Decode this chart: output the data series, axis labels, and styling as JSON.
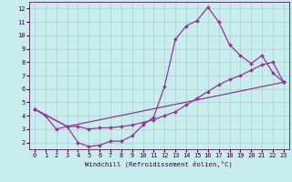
{
  "bg_color": "#c8eded",
  "grid_color": "#aacccc",
  "line_color": "#993399",
  "spine_color": "#663366",
  "tick_color": "#330033",
  "xlabel": "Windchill (Refroidissement éolien,°C)",
  "xlim": [
    -0.5,
    23.5
  ],
  "ylim": [
    1.5,
    12.5
  ],
  "xticks": [
    0,
    1,
    2,
    3,
    4,
    5,
    6,
    7,
    8,
    9,
    10,
    11,
    12,
    13,
    14,
    15,
    16,
    17,
    18,
    19,
    20,
    21,
    22,
    23
  ],
  "yticks": [
    2,
    3,
    4,
    5,
    6,
    7,
    8,
    9,
    10,
    11,
    12
  ],
  "curve1_x": [
    0,
    1,
    2,
    3,
    4,
    5,
    6,
    7,
    8,
    9,
    10,
    11,
    12,
    13,
    14,
    15,
    16,
    17,
    18,
    19,
    20,
    21,
    22,
    23
  ],
  "curve1_y": [
    4.5,
    4.0,
    3.0,
    3.2,
    2.0,
    1.7,
    1.8,
    2.1,
    2.1,
    2.5,
    3.3,
    3.9,
    6.2,
    9.7,
    10.7,
    11.1,
    12.1,
    11.0,
    9.3,
    8.5,
    7.9,
    8.5,
    7.2,
    6.5
  ],
  "curve2_x": [
    0,
    3,
    4,
    5,
    6,
    7,
    8,
    9,
    10,
    11,
    12,
    13,
    14,
    15,
    16,
    17,
    18,
    19,
    20,
    21,
    22,
    23
  ],
  "curve2_y": [
    4.5,
    3.2,
    3.2,
    3.0,
    3.1,
    3.1,
    3.2,
    3.3,
    3.5,
    3.7,
    4.0,
    4.3,
    4.8,
    5.3,
    5.8,
    6.3,
    6.7,
    7.0,
    7.4,
    7.8,
    8.0,
    6.5
  ],
  "curve3_x": [
    0,
    3,
    23
  ],
  "curve3_y": [
    4.5,
    3.2,
    6.5
  ],
  "marker_size": 2.0,
  "line_width": 0.9,
  "tick_fontsize": 5.0,
  "xlabel_fontsize": 5.2
}
